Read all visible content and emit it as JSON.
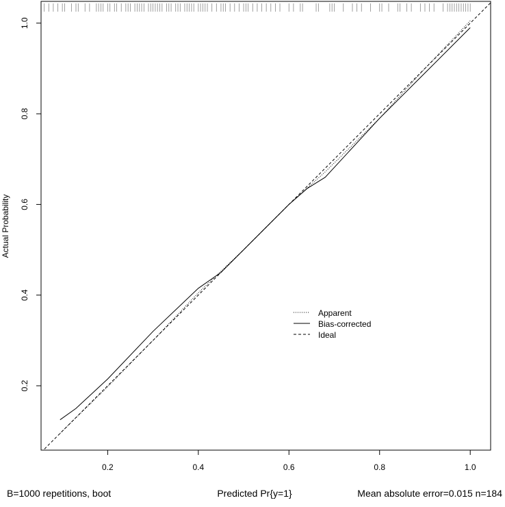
{
  "chart_data": {
    "type": "line",
    "title": "",
    "xlabel": "Predicted Pr{y=1}",
    "ylabel": "Actual Probability",
    "xlim": [
      0.053,
      1.045
    ],
    "ylim": [
      0.058,
      1.048
    ],
    "xticks": [
      0.2,
      0.4,
      0.6,
      0.8,
      1.0
    ],
    "xtick_labels": [
      "0.2",
      "0.4",
      "0.6",
      "0.8",
      "1.0"
    ],
    "yticks": [
      0.2,
      0.4,
      0.6,
      0.8,
      1.0
    ],
    "ytick_labels": [
      "0.2",
      "0.4",
      "0.6",
      "0.8",
      "1.0"
    ],
    "grid": false,
    "legend_position": "center-right",
    "series": [
      {
        "name": "Apparent",
        "style": "dotted",
        "x": [
          0.095,
          0.2,
          0.3,
          0.4,
          0.5,
          0.6,
          0.68,
          0.8,
          0.9,
          1.0
        ],
        "y": [
          0.095,
          0.198,
          0.3,
          0.405,
          0.5,
          0.6,
          0.672,
          0.79,
          0.9,
          1.005
        ]
      },
      {
        "name": "Bias-corrected",
        "style": "solid",
        "x": [
          0.095,
          0.13,
          0.2,
          0.3,
          0.4,
          0.45,
          0.5,
          0.6,
          0.64,
          0.68,
          0.8,
          0.9,
          1.0
        ],
        "y": [
          0.125,
          0.15,
          0.215,
          0.32,
          0.415,
          0.45,
          0.5,
          0.6,
          0.635,
          0.66,
          0.79,
          0.89,
          0.99
        ]
      },
      {
        "name": "Ideal",
        "style": "dashed",
        "x": [
          0.053,
          1.045
        ],
        "y": [
          0.053,
          1.045
        ]
      }
    ],
    "rug": [
      0.06,
      0.07,
      0.08,
      0.09,
      0.1,
      0.105,
      0.12,
      0.13,
      0.135,
      0.15,
      0.16,
      0.175,
      0.18,
      0.185,
      0.19,
      0.2,
      0.205,
      0.215,
      0.22,
      0.23,
      0.24,
      0.245,
      0.25,
      0.26,
      0.265,
      0.27,
      0.275,
      0.28,
      0.29,
      0.295,
      0.3,
      0.305,
      0.31,
      0.315,
      0.32,
      0.33,
      0.335,
      0.34,
      0.35,
      0.355,
      0.36,
      0.37,
      0.375,
      0.38,
      0.385,
      0.39,
      0.4,
      0.405,
      0.41,
      0.415,
      0.42,
      0.43,
      0.44,
      0.45,
      0.455,
      0.46,
      0.47,
      0.48,
      0.49,
      0.5,
      0.505,
      0.51,
      0.52,
      0.53,
      0.54,
      0.55,
      0.56,
      0.57,
      0.58,
      0.6,
      0.61,
      0.625,
      0.63,
      0.66,
      0.665,
      0.69,
      0.695,
      0.7,
      0.72,
      0.74,
      0.75,
      0.76,
      0.78,
      0.8,
      0.805,
      0.82,
      0.84,
      0.845,
      0.86,
      0.87,
      0.89,
      0.9,
      0.91,
      0.92,
      0.94,
      0.95,
      0.955,
      0.96,
      0.965,
      0.97,
      0.975,
      0.98,
      0.985,
      0.99,
      0.995,
      1.0
    ],
    "annotations": {
      "bottom_left": "B=1000 repetitions, boot",
      "bottom_right": "Mean absolute error=0.015  n=184"
    }
  }
}
